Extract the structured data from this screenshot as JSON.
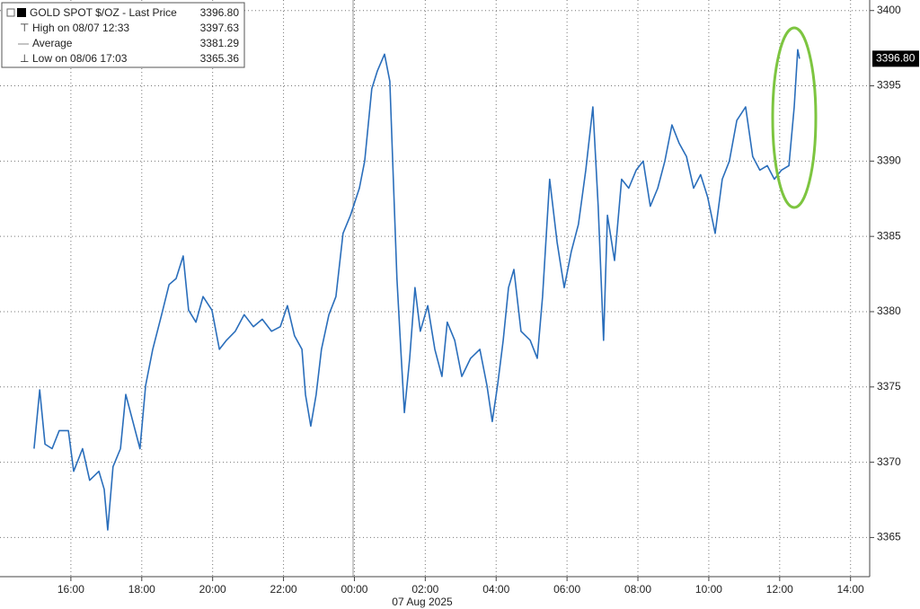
{
  "chart_data": {
    "type": "line",
    "x": [
      14.96,
      15.12,
      15.27,
      15.47,
      15.67,
      15.93,
      16.08,
      16.33,
      16.53,
      16.79,
      16.94,
      17.04,
      17.19,
      17.4,
      17.55,
      17.75,
      17.95,
      18.11,
      18.31,
      18.56,
      18.77,
      18.97,
      19.17,
      19.32,
      19.53,
      19.73,
      19.98,
      20.19,
      20.39,
      20.64,
      20.89,
      21.15,
      21.4,
      21.66,
      21.91,
      22.11,
      22.31,
      22.52,
      22.62,
      22.77,
      22.92,
      23.07,
      23.28,
      23.48,
      23.68,
      23.89,
      24.14,
      24.29,
      24.49,
      24.65,
      24.85,
      25.0,
      25.1,
      25.2,
      25.31,
      25.41,
      25.56,
      25.71,
      25.86,
      26.07,
      26.27,
      26.47,
      26.62,
      26.83,
      27.03,
      27.28,
      27.54,
      27.74,
      27.89,
      28.04,
      28.2,
      28.35,
      28.5,
      28.7,
      28.96,
      29.16,
      29.31,
      29.51,
      29.72,
      29.92,
      30.12,
      30.32,
      30.53,
      30.73,
      30.88,
      31.03,
      31.14,
      31.34,
      31.54,
      31.74,
      31.95,
      32.15,
      32.35,
      32.56,
      32.76,
      32.96,
      33.16,
      33.37,
      33.57,
      33.77,
      33.97,
      34.18,
      34.38,
      34.58,
      34.79,
      35.04,
      35.24,
      35.44,
      35.65,
      35.85,
      36.05,
      36.26,
      36.41,
      36.51,
      36.56
    ],
    "series": [
      {
        "name": "GOLD SPOT $/OZ - Last Price",
        "color": "#2a6ebb",
        "values": [
          3370.9,
          3374.8,
          3371.2,
          3370.9,
          3372.1,
          3372.1,
          3369.4,
          3370.9,
          3368.8,
          3369.4,
          3368.2,
          3365.5,
          3369.7,
          3370.9,
          3374.5,
          3372.7,
          3370.9,
          3375.1,
          3377.5,
          3379.8,
          3381.8,
          3382.2,
          3383.7,
          3380.1,
          3379.3,
          3381.0,
          3380.1,
          3377.5,
          3378.1,
          3378.7,
          3379.8,
          3379.0,
          3379.5,
          3378.7,
          3379.0,
          3380.4,
          3378.4,
          3377.5,
          3374.5,
          3372.4,
          3374.5,
          3377.5,
          3379.8,
          3381.0,
          3385.2,
          3386.4,
          3388.2,
          3390.0,
          3394.8,
          3396.0,
          3397.1,
          3395.3,
          3388.8,
          3382.2,
          3377.5,
          3373.3,
          3376.9,
          3381.6,
          3378.7,
          3380.4,
          3377.5,
          3375.7,
          3379.3,
          3378.1,
          3375.7,
          3376.9,
          3377.5,
          3375.1,
          3372.7,
          3375.1,
          3378.1,
          3381.6,
          3382.8,
          3378.7,
          3378.1,
          3376.9,
          3381.0,
          3388.8,
          3384.6,
          3381.6,
          3384.0,
          3385.8,
          3389.4,
          3393.6,
          3387.0,
          3378.1,
          3386.4,
          3383.4,
          3388.8,
          3388.2,
          3389.4,
          3390.0,
          3387.0,
          3388.2,
          3390.0,
          3392.4,
          3391.2,
          3390.3,
          3388.2,
          3389.1,
          3387.6,
          3385.2,
          3388.8,
          3390.0,
          3392.7,
          3393.6,
          3390.3,
          3389.4,
          3389.7,
          3388.8,
          3389.4,
          3389.7,
          3393.6,
          3397.4,
          3396.8
        ]
      }
    ],
    "last_price": {
      "value": 3396.8,
      "label": "3396.80"
    },
    "stats": [
      {
        "label": "High on 08/07 12:33",
        "value": 3397.63
      },
      {
        "label": "Average",
        "value": 3381.29
      },
      {
        "label": "Low on 08/06 17:03",
        "value": 3365.36
      }
    ],
    "date_label": "07 Aug 2025",
    "xlim": [
      14.0,
      38.54
    ],
    "xticks": [
      {
        "value": 16,
        "label": "16:00"
      },
      {
        "value": 18,
        "label": "18:00"
      },
      {
        "value": 20,
        "label": "20:00"
      },
      {
        "value": 22,
        "label": "22:00"
      },
      {
        "value": 24,
        "label": "00:00"
      },
      {
        "value": 26,
        "label": "02:00"
      },
      {
        "value": 28,
        "label": "04:00"
      },
      {
        "value": 30,
        "label": "06:00"
      },
      {
        "value": 32,
        "label": "08:00"
      },
      {
        "value": 34,
        "label": "10:00"
      },
      {
        "value": 36,
        "label": "12:00"
      },
      {
        "value": 38,
        "label": "14:00"
      }
    ],
    "ylim": [
      3362.4,
      3400.7
    ],
    "yticks": [
      3365,
      3370,
      3375,
      3380,
      3385,
      3390,
      3395,
      3400
    ],
    "grid": true
  }
}
